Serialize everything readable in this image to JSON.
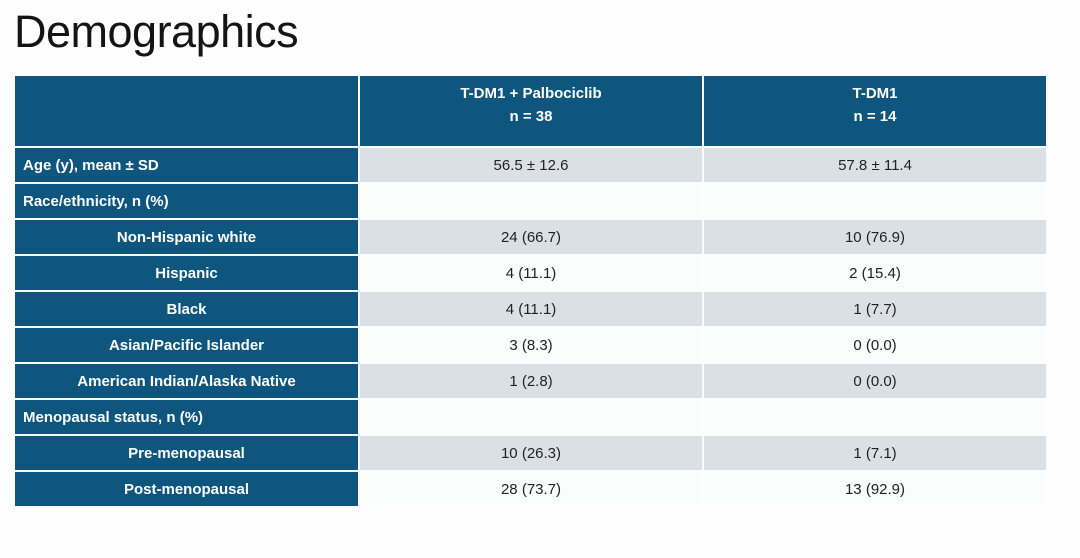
{
  "slide": {
    "title": "Demographics"
  },
  "table": {
    "columns": [
      {
        "line1": "",
        "line2": ""
      },
      {
        "line1": "T-DM1 + Palbociclib",
        "line2": "n = 38"
      },
      {
        "line1": "T-DM1",
        "line2": "n = 14"
      }
    ],
    "rows": [
      {
        "label": "Age (y), mean ± SD",
        "indent": false,
        "values": [
          "56.5 ± 12.6",
          "57.8 ± 11.4"
        ]
      },
      {
        "label": "Race/ethnicity, n (%)",
        "indent": false,
        "values": [
          "",
          ""
        ]
      },
      {
        "label": "Non-Hispanic white",
        "indent": true,
        "values": [
          "24 (66.7)",
          "10 (76.9)"
        ]
      },
      {
        "label": "Hispanic",
        "indent": true,
        "values": [
          "4 (11.1)",
          "2 (15.4)"
        ]
      },
      {
        "label": "Black",
        "indent": true,
        "values": [
          "4 (11.1)",
          "1 (7.7)"
        ]
      },
      {
        "label": "Asian/Pacific Islander",
        "indent": true,
        "values": [
          "3 (8.3)",
          "0 (0.0)"
        ]
      },
      {
        "label": "American Indian/Alaska Native",
        "indent": true,
        "values": [
          "1 (2.8)",
          "0 (0.0)"
        ]
      },
      {
        "label": "Menopausal status, n (%)",
        "indent": false,
        "values": [
          "",
          ""
        ]
      },
      {
        "label": "Pre-menopausal",
        "indent": true,
        "values": [
          "10 (26.3)",
          "1 (7.1)"
        ]
      },
      {
        "label": "Post-menopausal",
        "indent": true,
        "values": [
          "28 (73.7)",
          "13 (92.9)"
        ]
      }
    ],
    "colors": {
      "header_bg": "#0e567e",
      "label_bg": "#0e567e",
      "row_shade_bg": "#dbe0e7",
      "row_plain_bg": "#fafdfc",
      "header_text": "#ffffff",
      "cell_text": "#222222",
      "title_text": "#141414"
    }
  }
}
